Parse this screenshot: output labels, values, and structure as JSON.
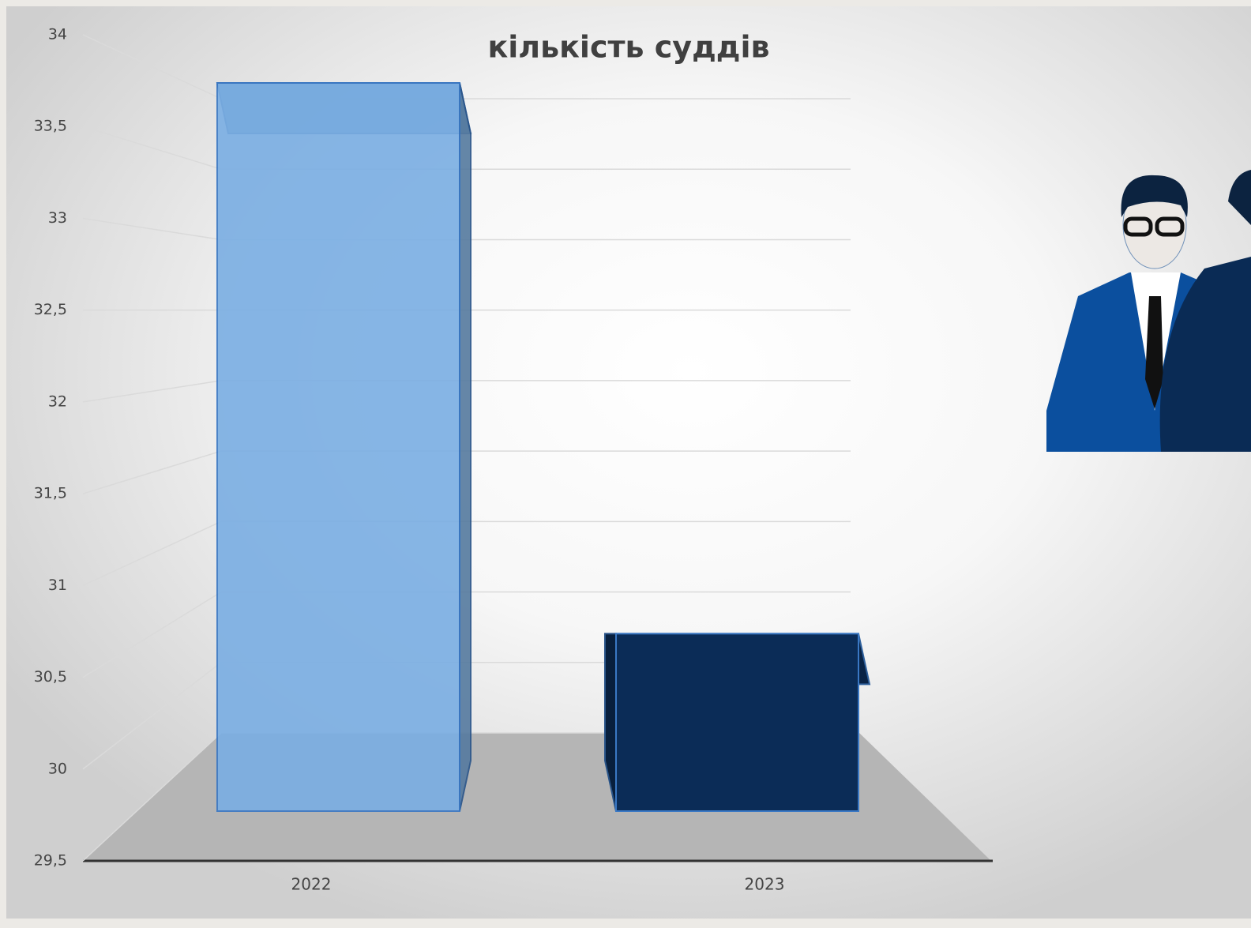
{
  "chart_data": {
    "type": "bar3d",
    "title": "кількість суддів",
    "categories": [
      "2022",
      "2023"
    ],
    "values": [
      34,
      31
    ],
    "colors": [
      "#7aaee3",
      "#0b2c57"
    ],
    "ylim": [
      29.5,
      34
    ],
    "yticks": [
      {
        "value": 29.5,
        "label": "29,5"
      },
      30,
      {
        "value": 30.5,
        "label": "30,5"
      },
      31,
      {
        "value": 31.5,
        "label": "31,5"
      },
      32,
      {
        "value": 32.5,
        "label": "32,5"
      },
      33,
      {
        "value": 33.5,
        "label": "33,5"
      },
      34
    ],
    "grid": true
  }
}
